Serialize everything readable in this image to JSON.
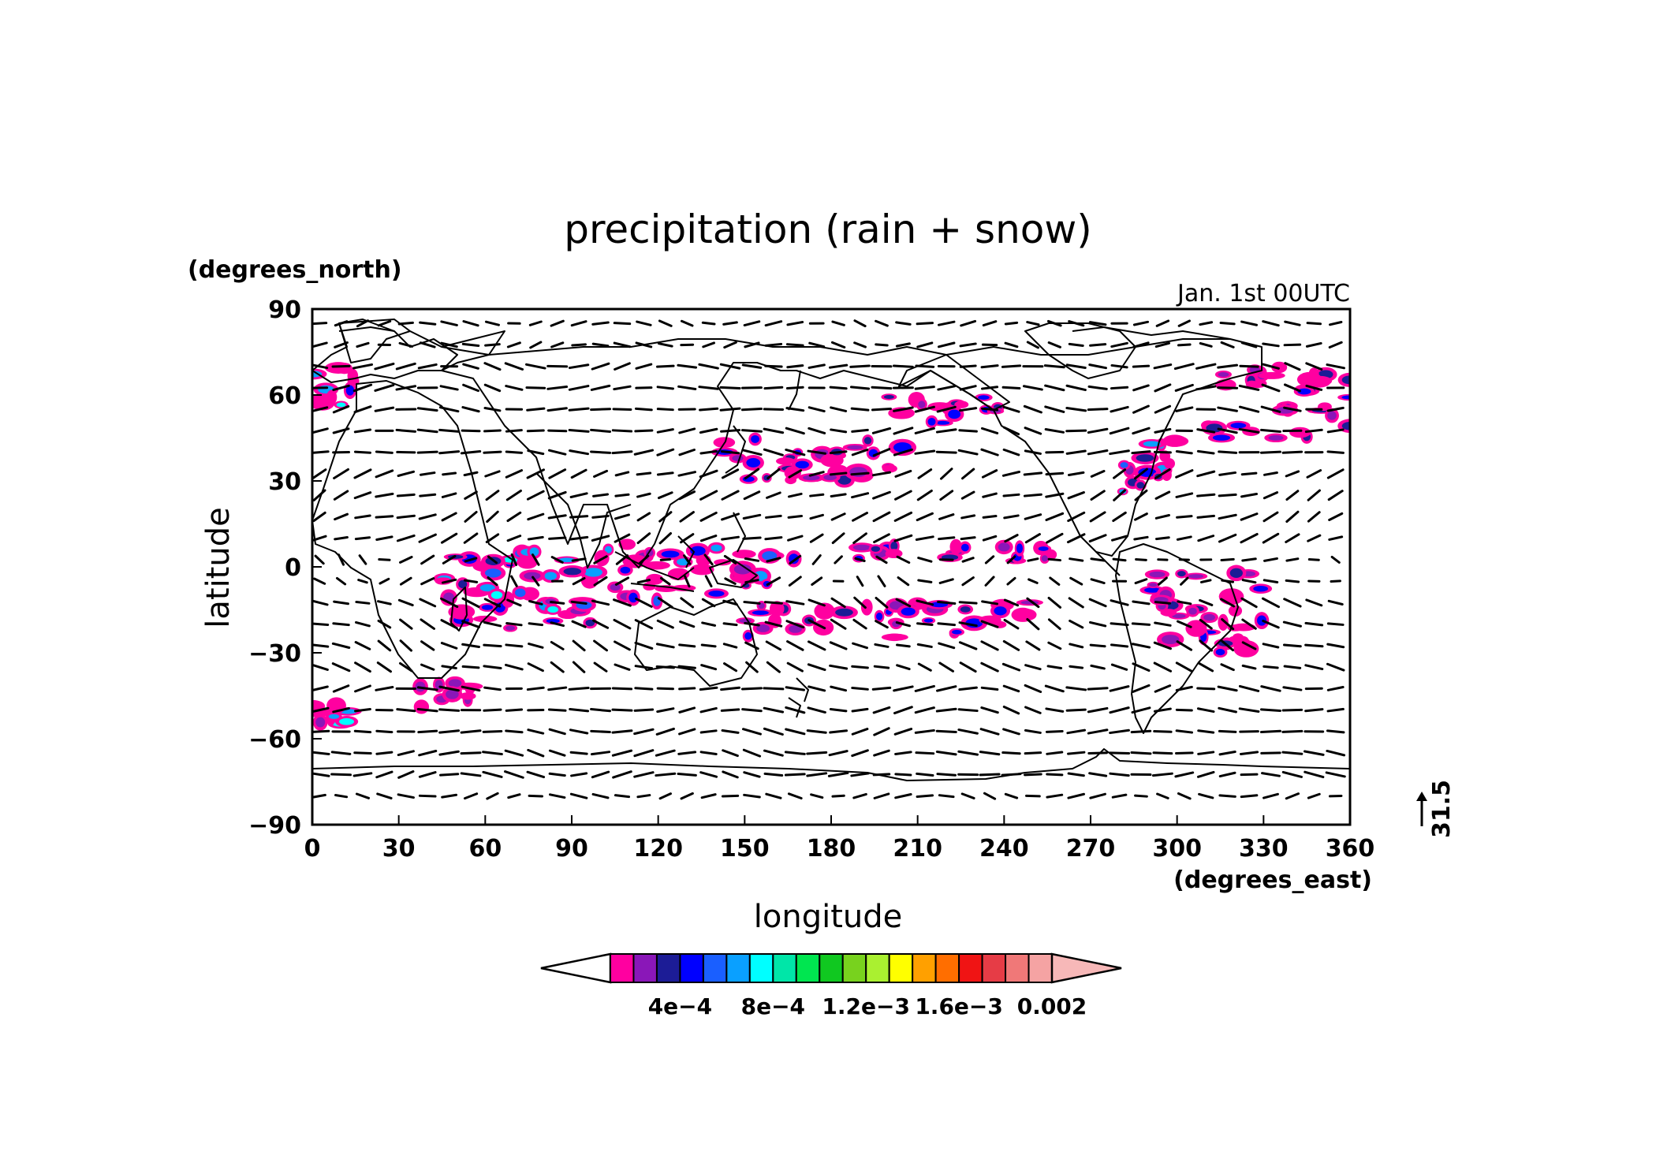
{
  "chart_data": {
    "type": "map",
    "title": "precipitation (rain + snow)",
    "subtitle": "Jan. 1st 00UTC",
    "xlabel": "longitude",
    "ylabel": "latitude",
    "x_units": "(degrees_east)",
    "y_units": "(degrees_north)",
    "xlim": [
      0,
      360
    ],
    "ylim": [
      -90,
      90
    ],
    "x_ticks": [
      0,
      30,
      60,
      90,
      120,
      150,
      180,
      210,
      240,
      270,
      300,
      330,
      360
    ],
    "y_ticks": [
      90,
      60,
      30,
      0,
      -30,
      -60,
      -90
    ],
    "vector_reference": "31.5",
    "colorbar": {
      "colors": [
        "#ff00a0",
        "#8a17b8",
        "#1c1c96",
        "#0000ff",
        "#1a5fff",
        "#0aa0ff",
        "#00ffff",
        "#00e6a8",
        "#00e650",
        "#10c820",
        "#78d21e",
        "#aaf030",
        "#ffff00",
        "#ffa000",
        "#ff6e00",
        "#f01414",
        "#e63c46",
        "#f07878",
        "#f5a3a3"
      ],
      "over_color": "#f7b8b8",
      "under_color": "#ffffff",
      "tick_labels": [
        "4e-4",
        "8e-4",
        "1.2e-3",
        "1.6e-3",
        "0.002"
      ]
    },
    "precip_bands": [
      {
        "lon": [
          45,
          100
        ],
        "lat": [
          -22,
          6
        ],
        "level": "high"
      },
      {
        "lon": [
          100,
          160
        ],
        "lat": [
          -12,
          8
        ],
        "level": "high"
      },
      {
        "lon": [
          160,
          260
        ],
        "lat": [
          2,
          8
        ],
        "level": "medium"
      },
      {
        "lon": [
          150,
          250
        ],
        "lat": [
          -25,
          -12
        ],
        "level": "medium"
      },
      {
        "lon": [
          140,
          205
        ],
        "lat": [
          30,
          45
        ],
        "level": "medium"
      },
      {
        "lon": [
          200,
          240
        ],
        "lat": [
          50,
          60
        ],
        "level": "medium"
      },
      {
        "lon": [
          280,
          300
        ],
        "lat": [
          25,
          45
        ],
        "level": "high"
      },
      {
        "lon": [
          290,
          330
        ],
        "lat": [
          -30,
          0
        ],
        "level": "medium"
      },
      {
        "lon": [
          310,
          360
        ],
        "lat": [
          45,
          70
        ],
        "level": "medium"
      },
      {
        "lon": [
          0,
          15
        ],
        "lat": [
          55,
          70
        ],
        "level": "high"
      },
      {
        "lon": [
          0,
          15
        ],
        "lat": [
          -55,
          -48
        ],
        "level": "high"
      },
      {
        "lon": [
          35,
          55
        ],
        "lat": [
          -50,
          -40
        ],
        "level": "low"
      }
    ]
  }
}
